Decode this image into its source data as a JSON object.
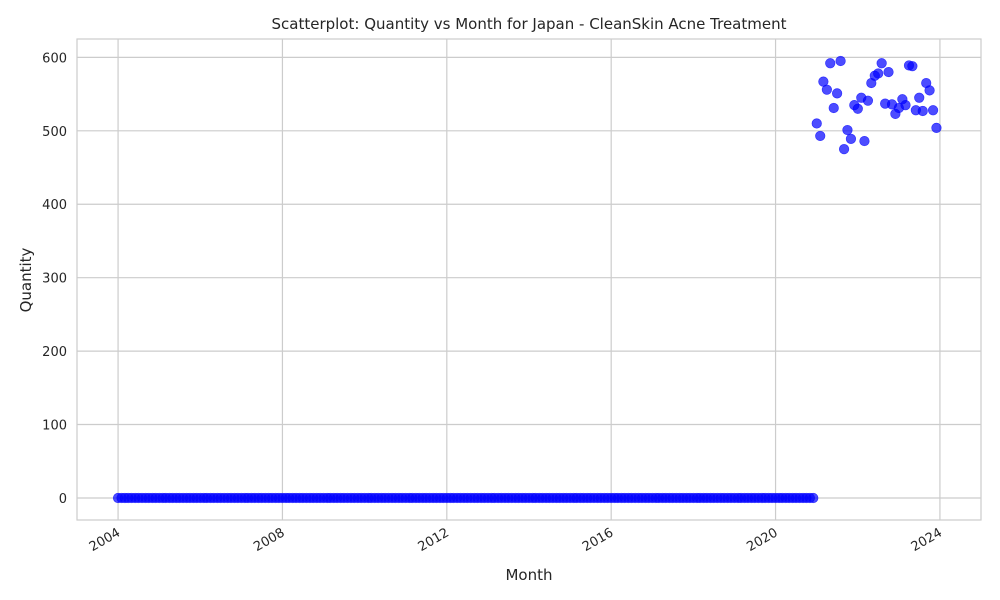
{
  "chart_data": {
    "type": "scatter",
    "title": "Scatterplot: Quantity vs Month for Japan - CleanSkin Acne Treatment",
    "xlabel": "Month",
    "ylabel": "Quantity",
    "x_type": "date",
    "xlim": [
      "2003-01-01",
      "2024-12-31"
    ],
    "ylim": [
      -30,
      625
    ],
    "x_ticks": [
      "2004-01-01",
      "2008-01-01",
      "2012-01-01",
      "2016-01-01",
      "2020-01-01",
      "2024-01-01"
    ],
    "x_tick_labels": [
      "2004",
      "2008",
      "2012",
      "2016",
      "2020",
      "2024"
    ],
    "y_ticks": [
      0,
      100,
      200,
      300,
      400,
      500,
      600
    ],
    "y_tick_labels": [
      "0",
      "100",
      "200",
      "300",
      "400",
      "500",
      "600"
    ],
    "grid": true,
    "zero_series": {
      "start": "2004-01",
      "end": "2020-12",
      "value": 0
    },
    "series": [
      {
        "color": "#0000ff",
        "points": [
          {
            "x": "2021-01",
            "y": 510
          },
          {
            "x": "2021-02",
            "y": 493
          },
          {
            "x": "2021-03",
            "y": 567
          },
          {
            "x": "2021-04",
            "y": 556
          },
          {
            "x": "2021-05",
            "y": 592
          },
          {
            "x": "2021-06",
            "y": 531
          },
          {
            "x": "2021-07",
            "y": 551
          },
          {
            "x": "2021-08",
            "y": 595
          },
          {
            "x": "2021-09",
            "y": 475
          },
          {
            "x": "2021-10",
            "y": 501
          },
          {
            "x": "2021-11",
            "y": 489
          },
          {
            "x": "2021-12",
            "y": 535
          },
          {
            "x": "2022-01",
            "y": 530
          },
          {
            "x": "2022-02",
            "y": 545
          },
          {
            "x": "2022-03",
            "y": 486
          },
          {
            "x": "2022-04",
            "y": 541
          },
          {
            "x": "2022-05",
            "y": 565
          },
          {
            "x": "2022-06",
            "y": 575
          },
          {
            "x": "2022-07",
            "y": 578
          },
          {
            "x": "2022-08",
            "y": 592
          },
          {
            "x": "2022-09",
            "y": 537
          },
          {
            "x": "2022-10",
            "y": 580
          },
          {
            "x": "2022-11",
            "y": 536
          },
          {
            "x": "2022-12",
            "y": 523
          },
          {
            "x": "2023-01",
            "y": 531
          },
          {
            "x": "2023-02",
            "y": 543
          },
          {
            "x": "2023-03",
            "y": 535
          },
          {
            "x": "2023-04",
            "y": 589
          },
          {
            "x": "2023-05",
            "y": 588
          },
          {
            "x": "2023-06",
            "y": 528
          },
          {
            "x": "2023-07",
            "y": 545
          },
          {
            "x": "2023-08",
            "y": 527
          },
          {
            "x": "2023-09",
            "y": 565
          },
          {
            "x": "2023-10",
            "y": 555
          },
          {
            "x": "2023-11",
            "y": 528
          },
          {
            "x": "2023-12",
            "y": 504
          }
        ]
      }
    ]
  }
}
